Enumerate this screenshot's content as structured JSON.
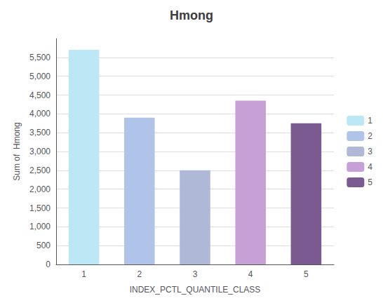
{
  "chart_data": {
    "type": "bar",
    "title": "Hmong",
    "xlabel": "INDEX_PCTL_QUANTILE_CLASS",
    "ylabel": "Sum of  Hmong",
    "categories": [
      "1",
      "2",
      "3",
      "4",
      "5"
    ],
    "values": [
      5700,
      3900,
      2500,
      4350,
      3750
    ],
    "colors": [
      "#bce8f5",
      "#afc4e8",
      "#b0b8d8",
      "#c8a0d8",
      "#7a5a90"
    ],
    "ylim": [
      0,
      6000
    ],
    "yticks": [
      0,
      500,
      {
        "value": 1000,
        "label": "1,000"
      },
      {
        "value": 1500,
        "label": "1,500"
      },
      {
        "value": 2000,
        "label": "2,000"
      },
      {
        "value": 2500,
        "label": "2,500"
      },
      {
        "value": 3000,
        "label": "3,000"
      },
      {
        "value": 3500,
        "label": "3,500"
      },
      {
        "value": 4000,
        "label": "4,000"
      },
      {
        "value": 4500,
        "label": "4,500"
      },
      {
        "value": 5000,
        "label": "5,000"
      },
      {
        "value": 5500,
        "label": "5,500"
      }
    ],
    "grid": true,
    "legend": "right"
  }
}
